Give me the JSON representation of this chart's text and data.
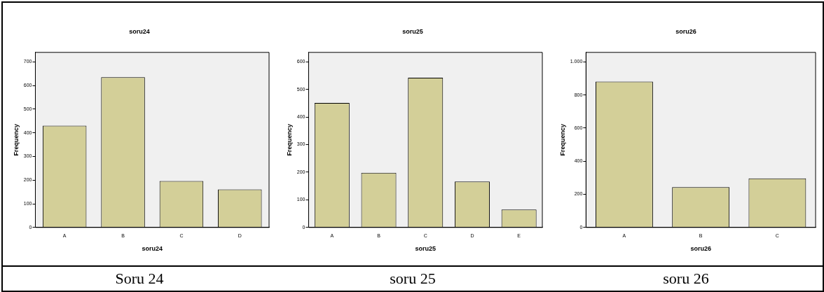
{
  "chart_data": [
    {
      "type": "bar",
      "title": "soru24",
      "xlabel": "soru24",
      "ylabel": "Frequency",
      "categories": [
        "A",
        "B",
        "C",
        "D"
      ],
      "values": [
        430,
        635,
        196,
        161
      ],
      "color": "#d3cf98",
      "ylim": [
        0,
        740
      ],
      "yticks": [
        0,
        100,
        200,
        300,
        400,
        500,
        600,
        700
      ],
      "annotations": [
        "Soru 24"
      ]
    },
    {
      "type": "bar",
      "title": "soru25",
      "xlabel": "soru25",
      "ylabel": "Frequency",
      "categories": [
        "A",
        "B",
        "C",
        "D",
        "E"
      ],
      "values": [
        451,
        198,
        542,
        166,
        65
      ],
      "color": "#d3cf98",
      "ylim": [
        0,
        634
      ],
      "yticks": [
        0,
        100,
        200,
        300,
        400,
        500,
        600
      ],
      "annotations": [
        "soru 25"
      ]
    },
    {
      "type": "bar",
      "title": "soru26",
      "xlabel": "soru26",
      "ylabel": "Frequency",
      "categories": [
        "A",
        "B",
        "C"
      ],
      "values": [
        881,
        243,
        296
      ],
      "color": "#d3cf98",
      "ylim": [
        0,
        1057
      ],
      "yticks": [
        0,
        200,
        400,
        600,
        800,
        {
          "value": 1000,
          "label": "1.000"
        }
      ],
      "annotations": [
        "soru 26"
      ]
    }
  ]
}
